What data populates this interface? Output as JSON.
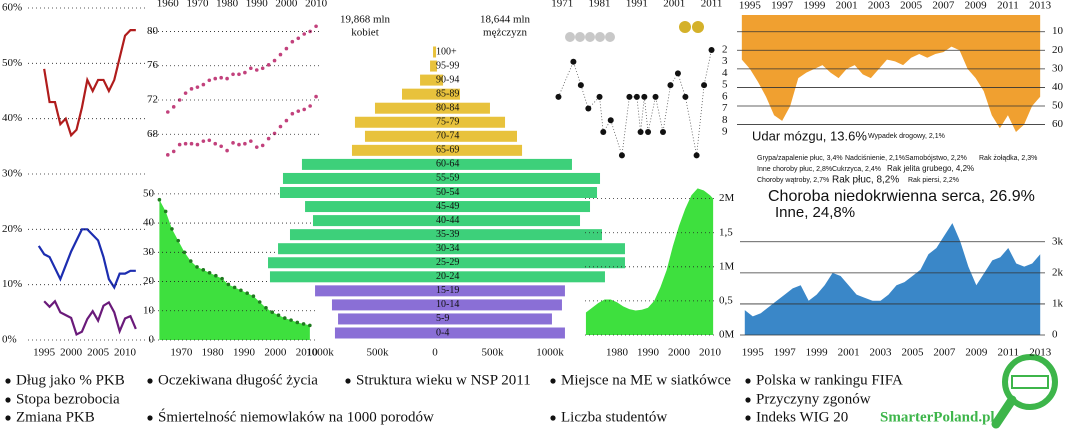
{
  "chart_data": [
    {
      "type": "line",
      "x": [
        1994,
        1995,
        1996,
        1997,
        1998,
        1999,
        2000,
        2001,
        2002,
        2003,
        2004,
        2005,
        2006,
        2007,
        2008,
        2009,
        2010,
        2011,
        2012,
        2013
      ],
      "series": [
        {
          "name": "Dług jako % PKB",
          "color": "#b01c1c",
          "values": [
            null,
            49,
            43,
            43,
            39,
            40,
            37,
            38,
            42,
            47,
            45,
            47,
            47,
            45,
            47,
            51,
            55,
            56,
            56,
            null
          ]
        },
        {
          "name": "Stopa bezrobocia",
          "color": "#1c2db0",
          "values": [
            17,
            15.5,
            15,
            13,
            11,
            13.5,
            16,
            18,
            20,
            20,
            19,
            18,
            15,
            11,
            9.5,
            12,
            12,
            12.5,
            12.5,
            null
          ]
        },
        {
          "name": "Zmiana PKB",
          "color": "#6a1a7a",
          "values": [
            null,
            7,
            6,
            7,
            5,
            4.5,
            4,
            1,
            1.5,
            3.8,
            5.2,
            3.5,
            6.2,
            6.8,
            5,
            1.6,
            3.9,
            4.3,
            2,
            null
          ]
        }
      ],
      "xlim": [
        1992,
        2013.7
      ],
      "xticks": [
        1995,
        2000,
        2005,
        2010
      ],
      "ylim": [
        0,
        60
      ],
      "yticks": [
        {
          "value": 0,
          "label": "0%"
        },
        {
          "value": 10,
          "label": "10%"
        },
        {
          "value": 20,
          "label": "20%"
        },
        {
          "value": 30,
          "label": "30%"
        },
        {
          "value": 40,
          "label": "40%"
        },
        {
          "value": 50,
          "label": "50%"
        },
        {
          "value": 60,
          "label": "60%"
        }
      ],
      "grid": "dotted"
    },
    {
      "type": "scatter",
      "title": "Oczekiwana długość życia",
      "x": [
        1960,
        1962,
        1964,
        1966,
        1968,
        1970,
        1972,
        1974,
        1976,
        1978,
        1980,
        1982,
        1984,
        1986,
        1988,
        1990,
        1992,
        1994,
        1996,
        1998,
        2000,
        2002,
        2004,
        2006,
        2008,
        2010
      ],
      "series": [
        {
          "color": "#c2417c",
          "values": [
            70.6,
            71.2,
            72.0,
            72.8,
            73.3,
            73.5,
            73.8,
            74.3,
            74.5,
            74.6,
            74.5,
            75.0,
            75.0,
            75.2,
            75.7,
            75.5,
            75.7,
            76.1,
            76.6,
            77.3,
            78.0,
            78.8,
            79.2,
            79.7,
            80.0,
            80.6
          ]
        },
        {
          "color": "#c2417c",
          "values": [
            65.6,
            66.0,
            66.8,
            66.9,
            66.9,
            66.8,
            67.2,
            67.3,
            66.9,
            66.6,
            66.1,
            67.0,
            66.8,
            66.9,
            67.2,
            66.5,
            66.7,
            67.5,
            68.1,
            68.9,
            69.6,
            70.4,
            70.7,
            70.9,
            71.3,
            72.4
          ]
        }
      ],
      "xlim": [
        1954,
        2012
      ],
      "xticks": [
        1960,
        1970,
        1980,
        1990,
        2000,
        2010
      ],
      "ylim": [
        65,
        82.5
      ],
      "yticks": [
        68,
        72,
        76,
        80
      ],
      "grid": "dotted"
    },
    {
      "type": "area",
      "title": "Śmiertelność niemowlaków na 1000 porodów",
      "x": [
        1963,
        1965,
        1967,
        1969,
        1971,
        1973,
        1975,
        1977,
        1979,
        1981,
        1983,
        1985,
        1987,
        1989,
        1991,
        1993,
        1995,
        1997,
        1999,
        2001,
        2003,
        2005,
        2007,
        2009,
        2011
      ],
      "values": [
        48,
        44,
        38,
        34,
        30,
        27,
        25,
        24,
        23,
        22,
        21,
        19,
        18,
        17,
        16,
        15,
        13,
        11,
        9.5,
        8.5,
        7.5,
        6.8,
        6,
        5.5,
        5
      ],
      "color": "#3ee03e",
      "marker_color": "#1f7a1f",
      "markers": true,
      "xlim": [
        1960,
        2013.6
      ],
      "xticks": [
        1970,
        1980,
        1990,
        2000,
        2010
      ],
      "ylim": [
        0,
        52
      ],
      "yticks": [
        0,
        10,
        20,
        30,
        40,
        50
      ],
      "grid": "dotted"
    },
    {
      "type": "pyramid",
      "title": "Struktura wieku w NSP 2011",
      "categories": [
        "100+",
        "95-99",
        "90-94",
        "85-89",
        "80-84",
        "75-79",
        "70-74",
        "65-69",
        "60-64",
        "55-59",
        "50-54",
        "45-49",
        "40-44",
        "35-39",
        "30-34",
        "25-29",
        "20-24",
        "15-19",
        "10-14",
        "5-9",
        "0-4"
      ],
      "colors": [
        "#e8c23c",
        "#e8c23c",
        "#e8c23c",
        "#e8c23c",
        "#e8c23c",
        "#e8c23c",
        "#e8c23c",
        "#e8c23c",
        "#3dd07a",
        "#3dd07a",
        "#3dd07a",
        "#3dd07a",
        "#3dd07a",
        "#3dd07a",
        "#3dd07a",
        "#3dd07a",
        "#3dd07a",
        "#8a6fd6",
        "#8a6fd6",
        "#8a6fd6",
        "#8a6fd6"
      ],
      "series": [
        {
          "name": "kobiet",
          "total": "19,868 mln",
          "values": [
            17,
            43,
            130,
            287,
            522,
            696,
            609,
            722,
            1157,
            1322,
            1348,
            1130,
            1061,
            1261,
            1365,
            1452,
            1435,
            1043,
            896,
            843,
            870
          ]
        },
        {
          "name": "mężczyzn",
          "total": "18,644 mln",
          "values": [
            9,
            17,
            70,
            217,
            478,
            609,
            713,
            757,
            1191,
            1435,
            1409,
            1348,
            1261,
            1452,
            1652,
            1652,
            1478,
            1130,
            1104,
            1017,
            1130
          ]
        }
      ],
      "xticks_left": [
        {
          "value": 1000,
          "label": "1000k"
        },
        {
          "value": 500,
          "label": "500k"
        }
      ],
      "xticks_right": [
        0,
        {
          "value": 500,
          "label": "500k"
        },
        {
          "value": 1000,
          "label": "1000k"
        }
      ]
    },
    {
      "type": "scatter",
      "title": "Miejsce na ME w siatkówce",
      "x": [
        1970,
        1974,
        1976,
        1978,
        1981,
        1982,
        1984,
        1987,
        1989,
        1991,
        1992,
        1993,
        1994,
        1996,
        1998,
        2000,
        2002,
        2004,
        2007,
        2009,
        2011
      ],
      "values": [
        6,
        3,
        5,
        7,
        6,
        9,
        8,
        11,
        6,
        6,
        9,
        6,
        9,
        6,
        9,
        5,
        4,
        6,
        11,
        5,
        2
      ],
      "color": "#111111",
      "line": "dotted",
      "xlim": [
        1968,
        2013
      ],
      "xticks": [
        1971,
        1981,
        1991,
        2001,
        2011
      ],
      "ylim": [
        1,
        12
      ],
      "y_reversed": true,
      "yticks": [
        2,
        3,
        4,
        5,
        6,
        7,
        8,
        9
      ]
    },
    {
      "type": "area",
      "title": "Polska w rankingu FIFA",
      "x": [
        1994.5,
        1995,
        1995.5,
        1996,
        1996.5,
        1997,
        1997.5,
        1998,
        1998.5,
        1999,
        1999.5,
        2000,
        2000.5,
        2001,
        2001.5,
        2002,
        2002.5,
        2003,
        2003.5,
        2004,
        2004.5,
        2005,
        2005.5,
        2006,
        2006.5,
        2007,
        2007.5,
        2008,
        2008.5,
        2009,
        2009.5,
        2010,
        2010.5,
        2011,
        2011.5,
        2012,
        2012.5,
        2013
      ],
      "values": [
        25,
        30,
        37,
        45,
        55,
        58,
        50,
        35,
        32,
        30,
        28,
        32,
        35,
        30,
        28,
        33,
        35,
        30,
        25,
        26,
        28,
        24,
        22,
        24,
        22,
        21,
        18,
        20,
        30,
        35,
        42,
        55,
        62,
        55,
        64,
        60,
        50,
        45
      ],
      "color": "#f0a030",
      "xlim": [
        1994.2,
        2013.3
      ],
      "xticks": [
        1995,
        1997,
        1999,
        2001,
        2003,
        2005,
        2007,
        2009,
        2011,
        2013
      ],
      "ylim": [
        1,
        71
      ],
      "y_reversed": true,
      "yticks": [
        10,
        20,
        30,
        40,
        50,
        60
      ],
      "grid": "solid"
    },
    {
      "type": "labels",
      "title": "Przyczyny zgonów",
      "labels": [
        "Udar mózgu, 13.6%",
        "Wypadek drogowy, 2,1%",
        "Grypa/zapalenie płuc, 3,4%",
        "Nadciśnienie, 2,1%",
        "Samobójstwo, 2,2%",
        "Rak żołądka, 2,3%",
        "Inne choroby płuc, 2,8%",
        "Cukrzyca, 2,4%",
        "Rak jelita grubego, 4,2%",
        "Choroby wątroby, 2,7%",
        "Rak płuc, 8,2%",
        "Rak piersi, 2,2%",
        "Choroba niedokrwienna serca, 26.9%",
        "Inne, 24,8%"
      ]
    },
    {
      "type": "area",
      "title": "Liczba studentów",
      "x": [
        1970,
        1972,
        1974,
        1976,
        1978,
        1980,
        1982,
        1984,
        1986,
        1988,
        1990,
        1992,
        1994,
        1996,
        1998,
        2000,
        2002,
        2004,
        2006,
        2008,
        2010,
        2011
      ],
      "values": [
        0.33,
        0.4,
        0.47,
        0.52,
        0.52,
        0.48,
        0.42,
        0.38,
        0.36,
        0.37,
        0.4,
        0.5,
        0.7,
        0.95,
        1.3,
        1.6,
        1.85,
        2.05,
        2.15,
        2.12,
        2.05,
        2.0
      ],
      "color": "#3ee03e",
      "xlim": [
        1969.7,
        2011.6
      ],
      "xticks": [
        1980,
        1990,
        2000,
        2010
      ],
      "ylim": [
        0,
        2.2
      ],
      "yticks": [
        {
          "value": 0,
          "label": "0M"
        },
        {
          "value": 0.5,
          "label": "0,5"
        },
        {
          "value": 1,
          "label": "1M"
        },
        {
          "value": 1.5,
          "label": "1,5"
        },
        {
          "value": 2,
          "label": "2M"
        }
      ],
      "grid": "dotted"
    },
    {
      "type": "area",
      "title": "Indeks WIG 20",
      "x": [
        1994.5,
        1995,
        1995.5,
        1996,
        1996.5,
        1997,
        1997.5,
        1998,
        1998.5,
        1999,
        1999.5,
        2000,
        2000.5,
        2001,
        2001.5,
        2002,
        2002.5,
        2003,
        2003.5,
        2004,
        2004.5,
        2005,
        2005.5,
        2006,
        2006.5,
        2007,
        2007.5,
        2008,
        2008.5,
        2009,
        2009.5,
        2010,
        2010.5,
        2011,
        2011.5,
        2012,
        2012.5,
        2013
      ],
      "values": [
        800,
        600,
        700,
        900,
        1100,
        1300,
        1500,
        1600,
        1100,
        1300,
        1600,
        2000,
        1900,
        1600,
        1300,
        1200,
        1100,
        1100,
        1300,
        1600,
        1700,
        1900,
        2100,
        2600,
        2800,
        3200,
        3600,
        3000,
        2200,
        1600,
        2000,
        2400,
        2500,
        2800,
        2300,
        2200,
        2300,
        2600
      ],
      "color": "#3a87c8",
      "xlim": [
        1994.2,
        2013.3
      ],
      "xticks": [
        1995,
        1997,
        1999,
        2001,
        2003,
        2005,
        2007,
        2009,
        2011,
        2013
      ],
      "ylim": [
        0,
        3700
      ],
      "yticks": [
        0,
        {
          "value": 1000,
          "label": "1k"
        },
        {
          "value": 2000,
          "label": "2k"
        },
        {
          "value": 3000,
          "label": "3k"
        }
      ],
      "grid": "solid"
    }
  ],
  "brand": "SmarterPoland.pl"
}
